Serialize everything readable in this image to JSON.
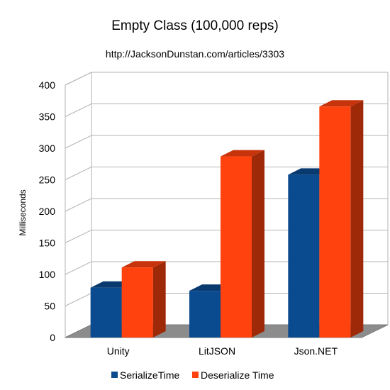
{
  "chart_data": {
    "type": "bar",
    "title": "Empty Class (100,000 reps)",
    "subtitle": "http://JacksonDunstan.com/articles/3303",
    "xlabel": "",
    "ylabel": "Milliseconds",
    "ylim": [
      0,
      400
    ],
    "yticks": [
      0,
      50,
      100,
      150,
      200,
      250,
      300,
      350,
      400
    ],
    "grid": true,
    "legend_position": "bottom",
    "categories": [
      "Unity",
      "LitJSON",
      "Json.NET"
    ],
    "series": [
      {
        "name": "SerializeTime",
        "values": [
          79,
          74,
          258
        ],
        "color": "#0a4a8f"
      },
      {
        "name": "Deserialize Time",
        "values": [
          111,
          287,
          366
        ],
        "color": "#ff420e"
      }
    ]
  }
}
